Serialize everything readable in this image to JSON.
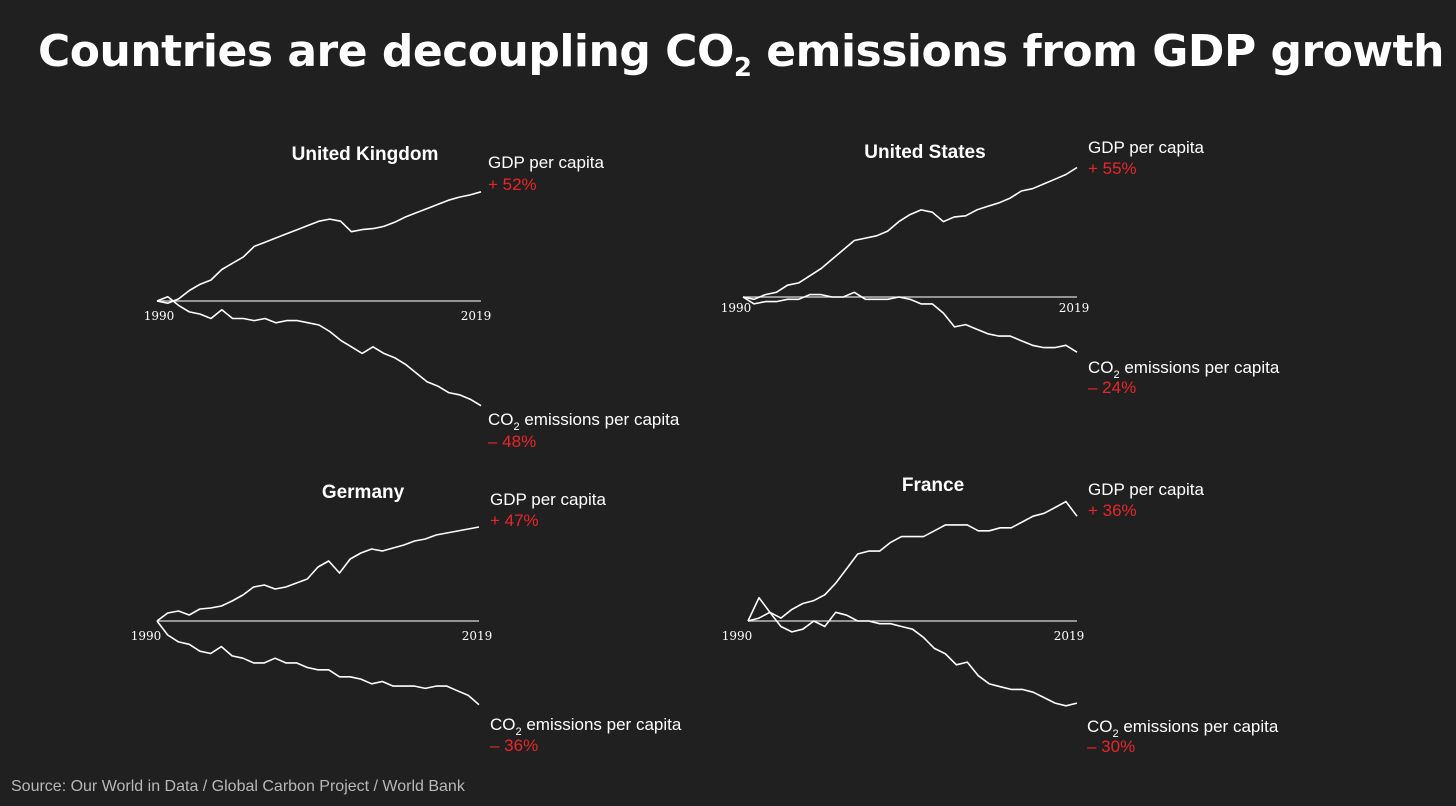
{
  "title": {
    "prefix": "Countries are decoupling CO",
    "sub": "2",
    "suffix": " emissions from GDP growth"
  },
  "source": "Source: Our World in Data / Global Carbon Project / World Bank",
  "colors": {
    "background": "#202020",
    "line": "#ffffff",
    "accent": "#e8262b",
    "baseline": "#d9d9d9"
  },
  "chart_data": [
    {
      "type": "line",
      "title": "United Kingdom",
      "x_start": "1990",
      "x_end": "2019",
      "ylim": [
        -55,
        60
      ],
      "gdp": {
        "label": "GDP per capita",
        "change": "+ 52%",
        "values": [
          0,
          -1,
          1,
          5,
          8,
          10,
          15,
          18,
          21,
          26,
          28,
          30,
          32,
          34,
          36,
          38,
          39,
          38,
          33,
          34,
          34.5,
          35.5,
          37.5,
          40,
          42,
          44,
          46,
          48,
          49.5,
          50.5,
          52
        ]
      },
      "co2": {
        "label_pre": "CO",
        "label_sub": "2",
        "label_post": " emissions per capita",
        "change": "– 48%",
        "values": [
          0,
          2,
          -2,
          -5,
          -6,
          -8,
          -4,
          -8,
          -8,
          -9,
          -8,
          -10,
          -9,
          -9,
          -10,
          -11,
          -14,
          -18,
          -21,
          -24,
          -21,
          -24,
          -26,
          -29,
          -33,
          -37,
          -39,
          -42,
          -43,
          -45,
          -48
        ]
      }
    },
    {
      "type": "line",
      "title": "United States",
      "x_start": "1990",
      "x_end": "2019",
      "ylim": [
        -30,
        62
      ],
      "gdp": {
        "label": "GDP per capita",
        "change": "+ 55%",
        "values": [
          0,
          -1,
          1,
          2,
          5,
          6,
          9,
          12,
          16,
          20,
          24,
          25,
          26,
          28,
          32,
          35,
          37,
          36,
          32,
          34,
          34.5,
          37,
          38.5,
          40,
          42,
          45,
          46,
          48,
          50,
          52,
          55
        ]
      },
      "co2": {
        "label_pre": "CO",
        "label_sub": "2",
        "label_post": " emissions per capita",
        "change": "– 24%",
        "values": [
          0,
          -3,
          -2,
          -2,
          -1,
          -1,
          1,
          1,
          0,
          0,
          2,
          -1,
          -1,
          -1,
          0,
          -1,
          -3,
          -3,
          -7,
          -13,
          -12,
          -14,
          -16,
          -17,
          -17,
          -19,
          -21,
          -22,
          -22,
          -21,
          -24
        ]
      }
    },
    {
      "type": "line",
      "title": "Germany",
      "x_start": "1990",
      "x_end": "2019",
      "ylim": [
        -40,
        58
      ],
      "gdp": {
        "label": "GDP per capita",
        "change": "+ 47%",
        "values": [
          0,
          4,
          5,
          3,
          6,
          6.5,
          7.5,
          10,
          13,
          17,
          18,
          16,
          17,
          19,
          21,
          27,
          30,
          24,
          31,
          34,
          36,
          35,
          36.5,
          38,
          40,
          41,
          43,
          44,
          45,
          46,
          47
        ]
      },
      "co2": {
        "label_pre": "CO",
        "label_sub": "2",
        "label_post": " emissions per capita",
        "change": "– 36%",
        "values": [
          0,
          -6,
          -9,
          -10,
          -13,
          -14,
          -11,
          -15,
          -16,
          -18,
          -18,
          -16,
          -18,
          -18,
          -20,
          -21,
          -21,
          -24,
          -24,
          -25,
          -27,
          -26,
          -28,
          -28,
          -28,
          -29,
          -28,
          -28,
          -30,
          -32,
          -36
        ]
      }
    },
    {
      "type": "line",
      "title": "France",
      "x_start": "1990",
      "x_end": "2019",
      "ylim": [
        -38,
        45
      ],
      "gdp": {
        "label": "GDP per capita",
        "change": "+ 36%",
        "values": [
          0,
          1,
          3,
          1,
          4,
          6,
          7,
          9,
          13,
          18,
          23,
          24,
          24,
          27,
          29,
          29,
          29,
          31,
          33,
          33,
          33,
          31,
          31,
          32,
          32,
          34,
          36,
          37,
          39,
          41,
          36
        ]
      },
      "co2": {
        "label_pre": "CO",
        "label_sub": "2",
        "label_post": " emissions per capita",
        "change": "– 30%",
        "values": [
          0,
          8,
          3,
          -2,
          -4,
          -3,
          0,
          -2,
          3,
          2,
          0,
          0,
          -1,
          -1,
          -2,
          -3,
          -6,
          -10,
          -12,
          -16,
          -15,
          -20,
          -23,
          -24,
          -25,
          -25,
          -26,
          -28,
          -30,
          -31,
          -30
        ]
      }
    }
  ]
}
